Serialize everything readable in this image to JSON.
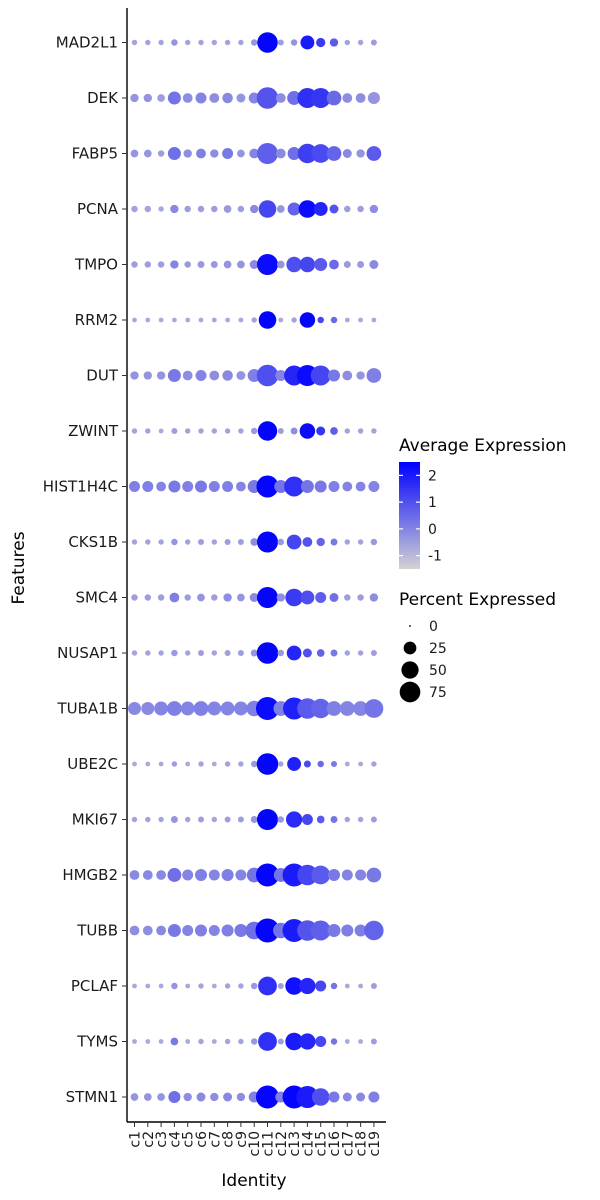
{
  "chart_data": {
    "type": "dotplot",
    "xlabel": "Identity",
    "ylabel": "Features",
    "clusters": [
      "c1",
      "c2",
      "c3",
      "c4",
      "c5",
      "c6",
      "c7",
      "c8",
      "c9",
      "c10",
      "c11",
      "c12",
      "c13",
      "c14",
      "c15",
      "c16",
      "c17",
      "c18",
      "c19"
    ],
    "genes": [
      "MAD2L1",
      "DEK",
      "FABP5",
      "PCNA",
      "TMPO",
      "RRM2",
      "DUT",
      "ZWINT",
      "HIST1H4C",
      "CKS1B",
      "SMC4",
      "NUSAP1",
      "TUBA1B",
      "UBE2C",
      "MKI67",
      "HMGB2",
      "TUBB",
      "PCLAF",
      "TYMS",
      "STMN1"
    ],
    "color_legend": {
      "title": "Average Expression",
      "ticks": [
        "2",
        "1",
        "0",
        "-1"
      ],
      "low_color": "#d3d3d3",
      "high_color": "#0000ff",
      "range": [
        -1.5,
        2.5
      ]
    },
    "size_legend": {
      "title": "Percent Expressed",
      "values": [
        0,
        25,
        50,
        75
      ],
      "labels": [
        "0",
        "25",
        "50",
        "75"
      ]
    },
    "data": {
      "MAD2L1": {
        "pct": [
          3,
          3,
          3,
          5,
          3,
          3,
          3,
          3,
          3,
          5,
          85,
          4,
          5,
          35,
          13,
          10,
          3,
          3,
          4
        ],
        "avg": [
          -0.6,
          -0.6,
          -0.6,
          -0.3,
          -0.6,
          -0.6,
          -0.6,
          -0.6,
          -0.6,
          -0.3,
          2.4,
          -0.5,
          -0.3,
          2.0,
          1.4,
          0.8,
          -0.6,
          -0.6,
          -0.5
        ]
      },
      "DEK": {
        "pct": [
          10,
          10,
          8,
          30,
          15,
          20,
          15,
          18,
          12,
          20,
          95,
          15,
          35,
          80,
          80,
          40,
          15,
          15,
          25
        ],
        "avg": [
          -0.3,
          -0.3,
          -0.5,
          0.3,
          -0.2,
          0.0,
          -0.2,
          -0.1,
          -0.3,
          0.0,
          0.9,
          -0.2,
          0.4,
          1.6,
          1.5,
          0.5,
          -0.2,
          -0.2,
          -0.3
        ]
      },
      "FABP5": {
        "pct": [
          8,
          8,
          5,
          30,
          10,
          15,
          10,
          20,
          8,
          15,
          90,
          15,
          30,
          75,
          70,
          40,
          12,
          10,
          40
        ],
        "avg": [
          -0.3,
          -0.3,
          -0.5,
          0.4,
          -0.2,
          0.1,
          -0.2,
          0.2,
          -0.3,
          0.0,
          0.7,
          -0.1,
          0.4,
          1.3,
          1.1,
          0.6,
          -0.1,
          -0.3,
          0.8
        ]
      },
      "PCNA": {
        "pct": [
          5,
          5,
          3,
          10,
          5,
          5,
          5,
          8,
          5,
          10,
          60,
          8,
          30,
          60,
          35,
          12,
          5,
          5,
          10
        ],
        "avg": [
          -0.6,
          -0.6,
          -0.7,
          -0.1,
          -0.5,
          -0.5,
          -0.5,
          -0.4,
          -0.5,
          -0.1,
          1.2,
          -0.3,
          0.6,
          2.3,
          1.8,
          0.9,
          -0.5,
          -0.5,
          -0.2
        ]
      },
      "TMPO": {
        "pct": [
          5,
          5,
          5,
          10,
          5,
          6,
          6,
          8,
          8,
          12,
          90,
          8,
          45,
          45,
          30,
          15,
          6,
          6,
          12
        ],
        "avg": [
          -0.5,
          -0.5,
          -0.5,
          0.0,
          -0.4,
          -0.4,
          -0.4,
          -0.3,
          -0.3,
          -0.1,
          2.3,
          -0.3,
          1.0,
          1.2,
          0.8,
          0.5,
          -0.4,
          -0.4,
          -0.1
        ]
      },
      "RRM2": {
        "pct": [
          2,
          2,
          2,
          2,
          2,
          2,
          2,
          2,
          2,
          3,
          60,
          2,
          3,
          45,
          5,
          5,
          2,
          2,
          2
        ],
        "avg": [
          -0.7,
          -0.7,
          -0.7,
          -0.7,
          -0.7,
          -0.7,
          -0.7,
          -0.7,
          -0.7,
          -0.6,
          2.4,
          -0.7,
          -0.6,
          2.4,
          1.2,
          0.5,
          -0.7,
          -0.7,
          -0.7
        ]
      },
      "DUT": {
        "pct": [
          10,
          10,
          10,
          30,
          15,
          20,
          15,
          18,
          12,
          30,
          95,
          20,
          80,
          90,
          80,
          25,
          15,
          10,
          40
        ],
        "avg": [
          -0.3,
          -0.3,
          -0.3,
          0.2,
          -0.2,
          0.0,
          -0.2,
          -0.1,
          -0.3,
          0.1,
          1.0,
          0.0,
          1.8,
          2.3,
          1.2,
          0.2,
          -0.2,
          -0.3,
          0.1
        ]
      },
      "ZWINT": {
        "pct": [
          3,
          3,
          2,
          4,
          3,
          3,
          3,
          3,
          3,
          5,
          75,
          4,
          6,
          45,
          12,
          8,
          3,
          3,
          3
        ],
        "avg": [
          -0.6,
          -0.6,
          -0.7,
          -0.5,
          -0.6,
          -0.6,
          -0.6,
          -0.6,
          -0.6,
          -0.4,
          2.4,
          -0.5,
          -0.2,
          2.3,
          1.5,
          0.7,
          -0.6,
          -0.6,
          -0.6
        ]
      },
      "HIST1H4C": {
        "pct": [
          20,
          20,
          15,
          25,
          20,
          25,
          20,
          20,
          15,
          30,
          100,
          30,
          80,
          30,
          25,
          20,
          15,
          15,
          20
        ],
        "avg": [
          0.1,
          0.1,
          0.0,
          0.2,
          0.1,
          0.2,
          0.1,
          0.1,
          0.0,
          0.2,
          2.4,
          0.3,
          1.6,
          0.3,
          0.2,
          0.1,
          0.0,
          0.0,
          0.0
        ]
      },
      "CKS1B": {
        "pct": [
          3,
          3,
          3,
          5,
          3,
          4,
          3,
          4,
          4,
          8,
          90,
          5,
          40,
          15,
          10,
          6,
          3,
          3,
          5
        ],
        "avg": [
          -0.6,
          -0.6,
          -0.6,
          -0.3,
          -0.6,
          -0.5,
          -0.6,
          -0.5,
          -0.5,
          -0.2,
          2.4,
          -0.4,
          1.2,
          0.9,
          0.6,
          0.2,
          -0.6,
          -0.6,
          -0.4
        ]
      },
      "SMC4": {
        "pct": [
          5,
          5,
          5,
          15,
          5,
          8,
          5,
          10,
          8,
          12,
          90,
          10,
          60,
          35,
          20,
          12,
          5,
          5,
          10
        ],
        "avg": [
          -0.5,
          -0.5,
          -0.5,
          0.1,
          -0.5,
          -0.3,
          -0.5,
          -0.2,
          -0.3,
          -0.1,
          2.4,
          -0.2,
          1.4,
          1.0,
          0.7,
          0.4,
          -0.5,
          -0.5,
          -0.2
        ]
      },
      "NUSAP1": {
        "pct": [
          3,
          3,
          3,
          5,
          3,
          4,
          3,
          4,
          4,
          6,
          95,
          5,
          40,
          12,
          8,
          6,
          3,
          3,
          4
        ],
        "avg": [
          -0.6,
          -0.6,
          -0.6,
          -0.4,
          -0.6,
          -0.5,
          -0.6,
          -0.5,
          -0.5,
          -0.3,
          2.4,
          -0.4,
          1.8,
          1.0,
          0.6,
          0.2,
          -0.6,
          -0.6,
          -0.5
        ]
      },
      "TUBA1B": {
        "pct": [
          30,
          30,
          35,
          40,
          35,
          40,
          35,
          35,
          35,
          45,
          110,
          40,
          100,
          85,
          75,
          40,
          40,
          40,
          70
        ],
        "avg": [
          -0.1,
          -0.1,
          0.0,
          0.1,
          0.0,
          0.1,
          0.0,
          0.0,
          0.0,
          0.1,
          2.3,
          0.1,
          1.9,
          0.8,
          0.6,
          0.1,
          0.0,
          0.0,
          0.3
        ]
      },
      "UBE2C": {
        "pct": [
          2,
          2,
          2,
          3,
          2,
          3,
          2,
          3,
          3,
          5,
          95,
          3,
          35,
          6,
          5,
          4,
          2,
          2,
          3
        ],
        "avg": [
          -0.7,
          -0.7,
          -0.7,
          -0.5,
          -0.7,
          -0.6,
          -0.7,
          -0.6,
          -0.6,
          -0.4,
          2.4,
          -0.6,
          1.9,
          1.1,
          0.5,
          0.2,
          -0.7,
          -0.7,
          -0.6
        ]
      },
      "MKI67": {
        "pct": [
          3,
          3,
          3,
          6,
          3,
          4,
          3,
          4,
          4,
          6,
          90,
          5,
          50,
          20,
          8,
          6,
          3,
          3,
          4
        ],
        "avg": [
          -0.6,
          -0.6,
          -0.6,
          -0.3,
          -0.6,
          -0.5,
          -0.6,
          -0.5,
          -0.5,
          -0.3,
          2.4,
          -0.4,
          1.7,
          1.2,
          0.8,
          0.3,
          -0.6,
          -0.6,
          -0.5
        ]
      },
      "HMGB2": {
        "pct": [
          15,
          15,
          15,
          35,
          20,
          25,
          20,
          25,
          20,
          40,
          110,
          35,
          110,
          85,
          70,
          25,
          20,
          20,
          40
        ],
        "avg": [
          -0.1,
          -0.1,
          -0.1,
          0.4,
          0.0,
          0.1,
          0.0,
          0.1,
          0.0,
          0.3,
          2.4,
          0.3,
          2.0,
          1.2,
          0.8,
          0.2,
          0.0,
          0.0,
          0.2
        ]
      },
      "TUBB": {
        "pct": [
          15,
          15,
          15,
          30,
          20,
          25,
          20,
          25,
          30,
          60,
          120,
          45,
          110,
          85,
          80,
          30,
          25,
          25,
          75
        ],
        "avg": [
          -0.2,
          -0.2,
          -0.1,
          0.2,
          0.0,
          0.1,
          0.0,
          0.1,
          0.2,
          0.4,
          2.4,
          0.3,
          2.0,
          0.9,
          0.7,
          0.2,
          0.1,
          0.1,
          0.6
        ]
      },
      "PCLAF": {
        "pct": [
          2,
          2,
          2,
          5,
          2,
          3,
          2,
          3,
          3,
          5,
          70,
          4,
          60,
          50,
          20,
          5,
          2,
          2,
          4
        ],
        "avg": [
          -0.7,
          -0.7,
          -0.7,
          -0.3,
          -0.7,
          -0.6,
          -0.7,
          -0.6,
          -0.6,
          -0.4,
          1.6,
          -0.5,
          2.2,
          1.8,
          1.2,
          0.3,
          -0.7,
          -0.7,
          -0.5
        ]
      },
      "TYMS": {
        "pct": [
          2,
          2,
          2,
          8,
          2,
          3,
          2,
          3,
          3,
          5,
          70,
          4,
          60,
          50,
          20,
          5,
          2,
          2,
          4
        ],
        "avg": [
          -0.7,
          -0.7,
          -0.7,
          0.2,
          -0.7,
          -0.6,
          -0.7,
          -0.6,
          -0.6,
          -0.4,
          1.6,
          -0.5,
          2.0,
          1.8,
          1.2,
          0.3,
          -0.7,
          -0.7,
          -0.5
        ]
      },
      "STMN1": {
        "pct": [
          8,
          8,
          8,
          25,
          10,
          12,
          10,
          12,
          10,
          20,
          110,
          20,
          110,
          100,
          60,
          20,
          12,
          12,
          20
        ],
        "avg": [
          -0.3,
          -0.3,
          -0.3,
          0.4,
          -0.2,
          -0.1,
          -0.2,
          -0.1,
          -0.2,
          0.1,
          2.4,
          0.1,
          2.4,
          2.0,
          1.0,
          0.2,
          -0.1,
          -0.1,
          0.1
        ]
      }
    }
  }
}
